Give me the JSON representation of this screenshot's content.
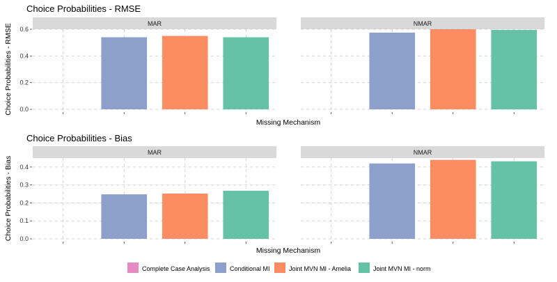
{
  "chart_data": [
    {
      "type": "bar",
      "title": "Choice Probabilities - RMSE",
      "xlabel": "Missing Mechanism",
      "ylabel": "Choice Probabilities - RMSE",
      "ylim": [
        0,
        0.6
      ],
      "yticks": [
        "0.0",
        "0.2",
        "0.4",
        "0.6"
      ],
      "panels": [
        {
          "label": "MAR",
          "series": [
            {
              "name": "Complete Case Analysis",
              "value": null
            },
            {
              "name": "Conditional MI",
              "value": 0.54
            },
            {
              "name": "Joint MVN MI - Amelia",
              "value": 0.55
            },
            {
              "name": "Joint MVN MI - norm",
              "value": 0.54
            }
          ]
        },
        {
          "label": "NMAR",
          "series": [
            {
              "name": "Complete Case Analysis",
              "value": null
            },
            {
              "name": "Conditional MI",
              "value": 0.575
            },
            {
              "name": "Joint MVN MI - Amelia",
              "value": 0.6
            },
            {
              "name": "Joint MVN MI - norm",
              "value": 0.595
            }
          ]
        }
      ],
      "grid": true
    },
    {
      "type": "bar",
      "title": "Choice Probabilities - Bias",
      "xlabel": "Missing Mechanism",
      "ylabel": "Choice Probabilities - Bias",
      "ylim": [
        0,
        0.45
      ],
      "yticks": [
        "0.0",
        "0.1",
        "0.2",
        "0.3",
        "0.4"
      ],
      "panels": [
        {
          "label": "MAR",
          "series": [
            {
              "name": "Complete Case Analysis",
              "value": null
            },
            {
              "name": "Conditional MI",
              "value": 0.248
            },
            {
              "name": "Joint MVN MI - Amelia",
              "value": 0.252
            },
            {
              "name": "Joint MVN MI - norm",
              "value": 0.268
            }
          ]
        },
        {
          "label": "NMAR",
          "series": [
            {
              "name": "Complete Case Analysis",
              "value": null
            },
            {
              "name": "Conditional MI",
              "value": 0.42
            },
            {
              "name": "Joint MVN MI - Amelia",
              "value": 0.44
            },
            {
              "name": "Joint MVN MI - norm",
              "value": 0.432
            }
          ]
        }
      ],
      "grid": true
    }
  ],
  "legend": {
    "position": "bottom",
    "items": [
      {
        "label": "Complete Case Analysis",
        "color": "#e78ac3"
      },
      {
        "label": "Conditional MI",
        "color": "#8da0cb"
      },
      {
        "label": "Joint MVN MI - Amelia",
        "color": "#fc8d62"
      },
      {
        "label": "Joint MVN MI - norm",
        "color": "#66c2a5"
      }
    ]
  }
}
